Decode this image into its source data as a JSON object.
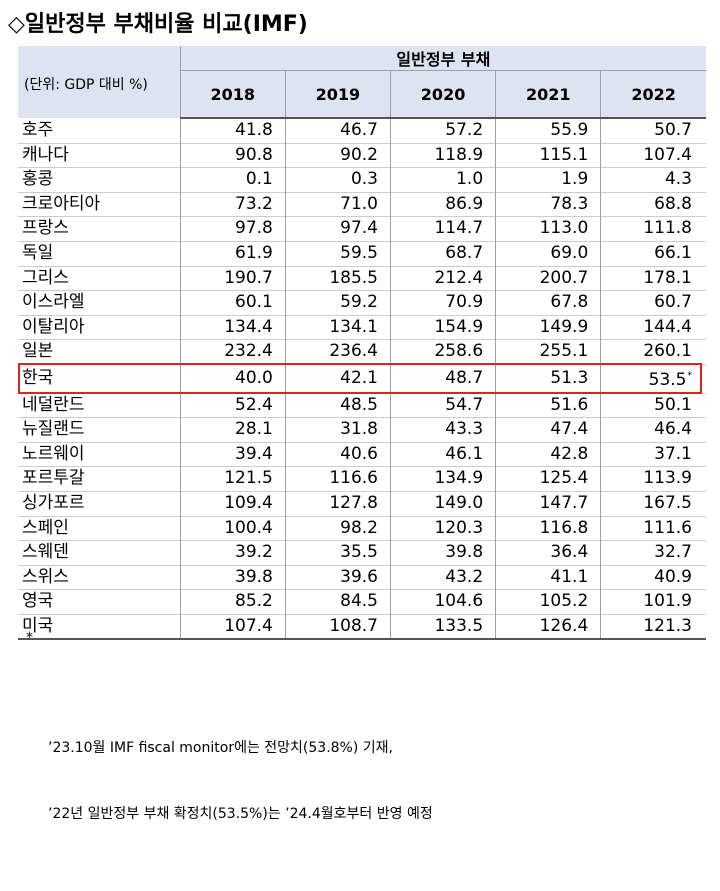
{
  "title": "◇일반정부 부채비율 비교(IMF)",
  "table": {
    "group_header": "일반정부 부채",
    "unit_label": "(단위: GDP 대비 %)",
    "years": [
      "2018",
      "2019",
      "2020",
      "2021",
      "2022"
    ],
    "rows": [
      {
        "country": "호주",
        "values": [
          "41.8",
          "46.7",
          "57.2",
          "55.9",
          "50.7"
        ]
      },
      {
        "country": "캐나다",
        "values": [
          "90.8",
          "90.2",
          "118.9",
          "115.1",
          "107.4"
        ]
      },
      {
        "country": "홍콩",
        "values": [
          "0.1",
          "0.3",
          "1.0",
          "1.9",
          "4.3"
        ]
      },
      {
        "country": "크로아티아",
        "values": [
          "73.2",
          "71.0",
          "86.9",
          "78.3",
          "68.8"
        ]
      },
      {
        "country": "프랑스",
        "values": [
          "97.8",
          "97.4",
          "114.7",
          "113.0",
          "111.8"
        ]
      },
      {
        "country": "독일",
        "values": [
          "61.9",
          "59.5",
          "68.7",
          "69.0",
          "66.1"
        ]
      },
      {
        "country": "그리스",
        "values": [
          "190.7",
          "185.5",
          "212.4",
          "200.7",
          "178.1"
        ]
      },
      {
        "country": "이스라엘",
        "values": [
          "60.1",
          "59.2",
          "70.9",
          "67.8",
          "60.7"
        ]
      },
      {
        "country": "이탈리아",
        "values": [
          "134.4",
          "134.1",
          "154.9",
          "149.9",
          "144.4"
        ]
      },
      {
        "country": "일본",
        "values": [
          "232.4",
          "236.4",
          "258.6",
          "255.1",
          "260.1"
        ]
      },
      {
        "country": "한국",
        "values": [
          "40.0",
          "42.1",
          "48.7",
          "51.3",
          "53.5"
        ],
        "highlighted": true,
        "last_value_mark": "*"
      },
      {
        "country": "네덜란드",
        "values": [
          "52.4",
          "48.5",
          "54.7",
          "51.6",
          "50.1"
        ]
      },
      {
        "country": "뉴질랜드",
        "values": [
          "28.1",
          "31.8",
          "43.3",
          "47.4",
          "46.4"
        ]
      },
      {
        "country": "노르웨이",
        "values": [
          "39.4",
          "40.6",
          "46.1",
          "42.8",
          "37.1"
        ]
      },
      {
        "country": "포르투갈",
        "values": [
          "121.5",
          "116.6",
          "134.9",
          "125.4",
          "113.9"
        ]
      },
      {
        "country": "싱가포르",
        "values": [
          "109.4",
          "127.8",
          "149.0",
          "147.7",
          "167.5"
        ]
      },
      {
        "country": "스페인",
        "values": [
          "100.4",
          "98.2",
          "120.3",
          "116.8",
          "111.6"
        ]
      },
      {
        "country": "스웨덴",
        "values": [
          "39.2",
          "35.5",
          "39.8",
          "36.4",
          "32.7"
        ]
      },
      {
        "country": "스위스",
        "values": [
          "39.8",
          "39.6",
          "43.2",
          "41.1",
          "40.9"
        ]
      },
      {
        "country": "영국",
        "values": [
          "85.2",
          "84.5",
          "104.6",
          "105.2",
          "101.9"
        ]
      },
      {
        "country": "미국",
        "values": [
          "107.4",
          "108.7",
          "133.5",
          "126.4",
          "121.3"
        ]
      }
    ]
  },
  "footnote": {
    "marker": "*",
    "line1": "’23.10월 IMF fiscal monitor에는 전망치(53.8%) 기재,",
    "line2": "’22년 일반정부 부채 확정치(53.5%)는 ’24.4월호부터 반영 예정"
  },
  "colors": {
    "header_bg": "#dde3f0",
    "highlight_border": "#dd2222"
  }
}
